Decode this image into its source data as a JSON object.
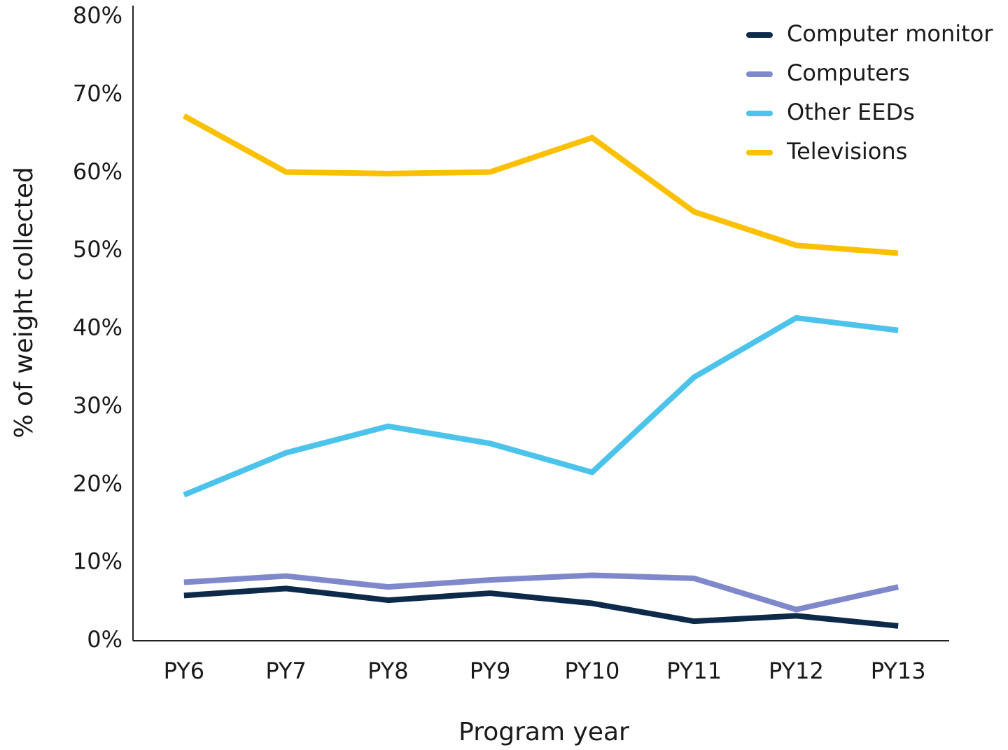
{
  "chart_data": {
    "type": "line",
    "x_label": "Program year",
    "y_label": "% of weight collected",
    "categories": [
      "PY6",
      "PY7",
      "PY8",
      "PY9",
      "PY10",
      "PY11",
      "PY12",
      "PY13"
    ],
    "series": [
      {
        "name": "Computer monitor",
        "color": "#0d2a4a",
        "values": [
          5.8,
          6.7,
          5.2,
          6.1,
          4.8,
          2.5,
          3.2,
          1.9
        ]
      },
      {
        "name": "Computers",
        "color": "#8088cc",
        "values": [
          7.5,
          8.3,
          6.9,
          7.8,
          8.4,
          8.0,
          4.0,
          6.9
        ]
      },
      {
        "name": "Other EEDs",
        "color": "#4cc3ea",
        "values": [
          18.7,
          24.1,
          27.5,
          25.3,
          21.6,
          33.8,
          41.4,
          39.8
        ]
      },
      {
        "name": "Televisions",
        "color": "#fbc000",
        "values": [
          67.3,
          60.1,
          59.9,
          60.1,
          64.5,
          55.0,
          50.7,
          49.7
        ]
      }
    ],
    "ylim": [
      0,
      80
    ],
    "yticks": [
      {
        "value": 0,
        "label": "0%"
      },
      {
        "value": 10,
        "label": "10%"
      },
      {
        "value": 20,
        "label": "20%"
      },
      {
        "value": 30,
        "label": "30%"
      },
      {
        "value": 40,
        "label": "40%"
      },
      {
        "value": 50,
        "label": "50%"
      },
      {
        "value": 60,
        "label": "60%"
      },
      {
        "value": 70,
        "label": "70%"
      },
      {
        "value": 80,
        "label": "80%"
      }
    ],
    "grid": false,
    "legend": "upper right"
  }
}
